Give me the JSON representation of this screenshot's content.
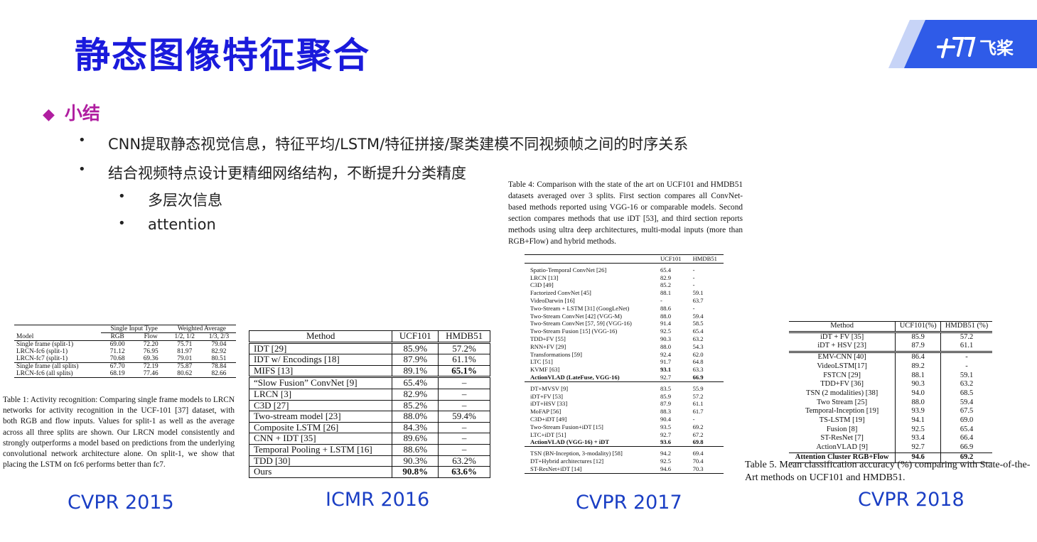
{
  "title": "静态图像特征聚合",
  "logo_text": "飞桨",
  "section": "小结",
  "bullets": [
    "CNN提取静态视觉信息，特征平均/LSTM/特征拼接/聚类建模不同视频帧之间的时序关系",
    "结合视频特点设计更精细网络结构，不断提升分类精度",
    "多层次信息",
    "attention"
  ],
  "venues": [
    "CVPR 2015",
    "ICMR 2016",
    "CVPR 2017",
    "CVPR 2018"
  ],
  "table1": {
    "group_headers": [
      "Single Input Type",
      "Weighted Average"
    ],
    "headers": [
      "Model",
      "RGB",
      "Flow",
      "1/2, 1/2",
      "1/3, 2/3"
    ],
    "rows": [
      [
        "Single frame (split-1)",
        "69.00",
        "72.20",
        "75.71",
        "79.04"
      ],
      [
        "LRCN-fc6 (split-1)",
        "71.12",
        "76.95",
        "81.97",
        "82.92"
      ],
      [
        "LRCN-fc7 (split-1)",
        "70.68",
        "69.36",
        "79.01",
        "80.51"
      ],
      [
        "Single frame (all splits)",
        "67.70",
        "72.19",
        "75.87",
        "78.84"
      ],
      [
        "LRCN-fc6 (all splits)",
        "68.19",
        "77.46",
        "80.62",
        "82.66"
      ]
    ],
    "caption": "Table 1: Activity recognition: Comparing single frame models to LRCN networks for activity recognition in the UCF-101 [37] dataset, with both RGB and flow inputs. Values for split-1 as well as the average across all three splits are shown. Our LRCN model consistently and strongly outperforms a model based on predictions from the underlying convolutional network architecture alone. On split-1, we show that placing the LSTM on fc6 performs better than fc7."
  },
  "table2": {
    "headers": [
      "Method",
      "UCF101",
      "HMDB51"
    ],
    "rows": [
      [
        "IDT [29]",
        "85.9%",
        "57.2%"
      ],
      [
        "IDT w/ Encodings [18]",
        "87.9%",
        "61.1%"
      ],
      [
        "MIFS [13]",
        "89.1%",
        "65.1%"
      ],
      [
        "“Slow Fusion” ConvNet [9]",
        "65.4%",
        "–"
      ],
      [
        "LRCN [3]",
        "82.9%",
        "–"
      ],
      [
        "C3D [27]",
        "85.2%",
        "–"
      ],
      [
        "Two-stream model [23]",
        "88.0%",
        "59.4%"
      ],
      [
        "Composite LSTM [26]",
        "84.3%",
        "–"
      ],
      [
        "CNN + IDT [35]",
        "89.6%",
        "–"
      ],
      [
        "Temporal Pooling + LSTM [16]",
        "88.6%",
        "–"
      ],
      [
        "TDD [30]",
        "90.3%",
        "63.2%"
      ],
      [
        "Ours",
        "90.8%",
        "63.6%"
      ]
    ]
  },
  "table3": {
    "caption": "Table 4: Comparison with the state of the art on UCF101 and HMDB51 datasets averaged over 3 splits. First section compares all ConvNet-based methods reported using VGG-16 or comparable models. Second section compares methods that use iDT [53], and third section reports methods using ultra deep architectures, multi-modal inputs (more than RGB+Flow) and hybrid methods.",
    "headers": [
      "",
      "UCF101",
      "HMDB51"
    ],
    "sections": [
      [
        [
          "Spatio-Temporal ConvNet [26]",
          "65.4",
          "-"
        ],
        [
          "LRCN [13]",
          "82.9",
          "-"
        ],
        [
          "C3D [49]",
          "85.2",
          "-"
        ],
        [
          "Factorized ConvNet [45]",
          "88.1",
          "59.1"
        ],
        [
          "VideoDarwin [16]",
          "-",
          "63.7"
        ],
        [
          "Two-Stream + LSTM [31] (GoogLeNet)",
          "88.6",
          "-"
        ],
        [
          "Two-Stream ConvNet [42] (VGG-M)",
          "88.0",
          "59.4"
        ],
        [
          "Two-Stream ConvNet [57, 59] (VGG-16)",
          "91.4",
          "58.5"
        ],
        [
          "Two-Stream Fusion [15] (VGG-16)",
          "92.5",
          "65.4"
        ],
        [
          "TDD+FV [55]",
          "90.3",
          "63.2"
        ],
        [
          "RNN+FV [29]",
          "88.0",
          "54.3"
        ],
        [
          "Transformations [59]",
          "92.4",
          "62.0"
        ],
        [
          "LTC [51]",
          "91.7",
          "64.8"
        ],
        [
          "KVMF [63]",
          "93.1",
          "63.3"
        ],
        [
          "ActionVLAD (LateFuse, VGG-16)",
          "92.7",
          "66.9"
        ]
      ],
      [
        [
          "DT+MVSV [9]",
          "83.5",
          "55.9"
        ],
        [
          "iDT+FV [53]",
          "85.9",
          "57.2"
        ],
        [
          "iDT+HSV [33]",
          "87.9",
          "61.1"
        ],
        [
          "MoFAP [56]",
          "88.3",
          "61.7"
        ],
        [
          "C3D+iDT [49]",
          "90.4",
          "-"
        ],
        [
          "Two-Stream Fusion+iDT [15]",
          "93.5",
          "69.2"
        ],
        [
          "LTC+iDT [51]",
          "92.7",
          "67.2"
        ],
        [
          "ActionVLAD (VGG-16) + iDT",
          "93.6",
          "69.8"
        ]
      ],
      [
        [
          "TSN (BN-Inception, 3-modality) [58]",
          "94.2",
          "69.4"
        ],
        [
          "DT+Hybrid architectures [12]",
          "92.5",
          "70.4"
        ],
        [
          "ST-ResNet+iDT [14]",
          "94.6",
          "70.3"
        ]
      ]
    ]
  },
  "table4": {
    "headers": [
      "Method",
      "UCF101(%)",
      "HMDB51 (%)"
    ],
    "rows": [
      [
        "iDT + FV [35]",
        "85.9",
        "57.2"
      ],
      [
        "iDT + HSV [23]",
        "87.9",
        "61.1"
      ],
      [
        "EMV-CNN [40]",
        "86.4",
        "-"
      ],
      [
        "VideoLSTM[17]",
        "89.2",
        "-"
      ],
      [
        "FSTCN [29]",
        "88.1",
        "59.1"
      ],
      [
        "TDD+FV [36]",
        "90.3",
        "63.2"
      ],
      [
        "TSN (2 modalities) [38]",
        "94.0",
        "68.5"
      ],
      [
        "Two Stream [25]",
        "88.0",
        "59.4"
      ],
      [
        "Temporal-Inception [19]",
        "93.9",
        "67.5"
      ],
      [
        "TS-LSTM [19]",
        "94.1",
        "69.0"
      ],
      [
        "Fusion [8]",
        "92.5",
        "65.4"
      ],
      [
        "ST-ResNet [7]",
        "93.4",
        "66.4"
      ],
      [
        "ActionVLAD [9]",
        "92.7",
        "66.9"
      ],
      [
        "Attention Cluster RGB+Flow",
        "94.6",
        "69.2"
      ]
    ],
    "caption": "Table 5. Mean classification accuracy (%) comparing with State-of-the-Art methods on UCF101 and HMDB51."
  },
  "colors": {
    "title": "#1a1adc",
    "section": "#b01ea0",
    "venue": "#1a3ec4",
    "logo_bg": "#2f5be8",
    "ref": "#2eb82e"
  }
}
